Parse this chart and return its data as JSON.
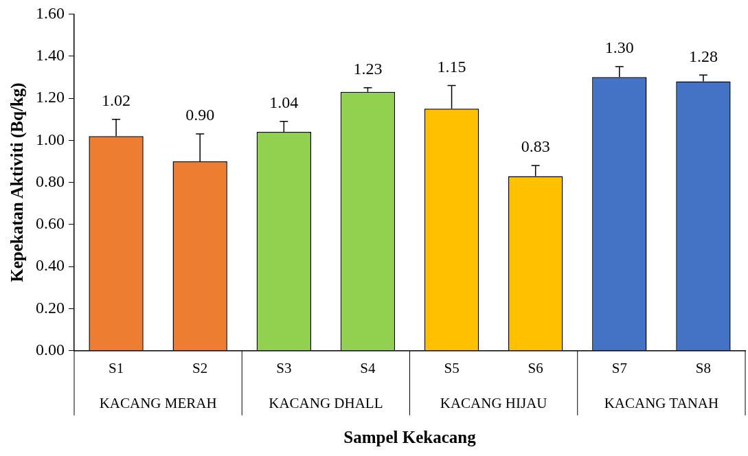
{
  "chart_data": {
    "type": "bar",
    "xlabel": "Sampel Kekacang",
    "ylabel": "Kepekatan Aktiviti (Bq/kg)",
    "categories": [
      "S1",
      "S2",
      "S3",
      "S4",
      "S5",
      "S6",
      "S7",
      "S8"
    ],
    "values": [
      1.02,
      0.9,
      1.04,
      1.23,
      1.15,
      0.83,
      1.3,
      1.28
    ],
    "value_labels": [
      "1.02",
      "0.90",
      "1.04",
      "1.23",
      "1.15",
      "0.83",
      "1.30",
      "1.28"
    ],
    "errors": [
      [
        1.02,
        1.1
      ],
      [
        0.9,
        1.03
      ],
      [
        1.04,
        1.09
      ],
      [
        1.23,
        1.25
      ],
      [
        1.15,
        1.26
      ],
      [
        0.83,
        0.88
      ],
      [
        1.3,
        1.35
      ],
      [
        1.28,
        1.31
      ]
    ],
    "colors": [
      "#ed7d31",
      "#ed7d31",
      "#92d050",
      "#92d050",
      "#ffc000",
      "#ffc000",
      "#4472c4",
      "#4472c4"
    ],
    "ylim": [
      0,
      1.6
    ],
    "yticks": [
      {
        "value": 0,
        "label": "0.00"
      },
      {
        "value": 0.2,
        "label": "0.20"
      },
      {
        "value": 0.4,
        "label": "0.40"
      },
      {
        "value": 0.6,
        "label": "0.60"
      },
      {
        "value": 0.8,
        "label": "0.80"
      },
      {
        "value": 1.0,
        "label": "1.00"
      },
      {
        "value": 1.2,
        "label": "1.20"
      },
      {
        "value": 1.4,
        "label": "1.40"
      },
      {
        "value": 1.6,
        "label": "1.60"
      }
    ],
    "annotations": [
      "KACANG MERAH",
      "KACANG DHALL",
      "KACANG HIJAU",
      "KACANG TANAH"
    ],
    "grid": false,
    "legend": false
  }
}
